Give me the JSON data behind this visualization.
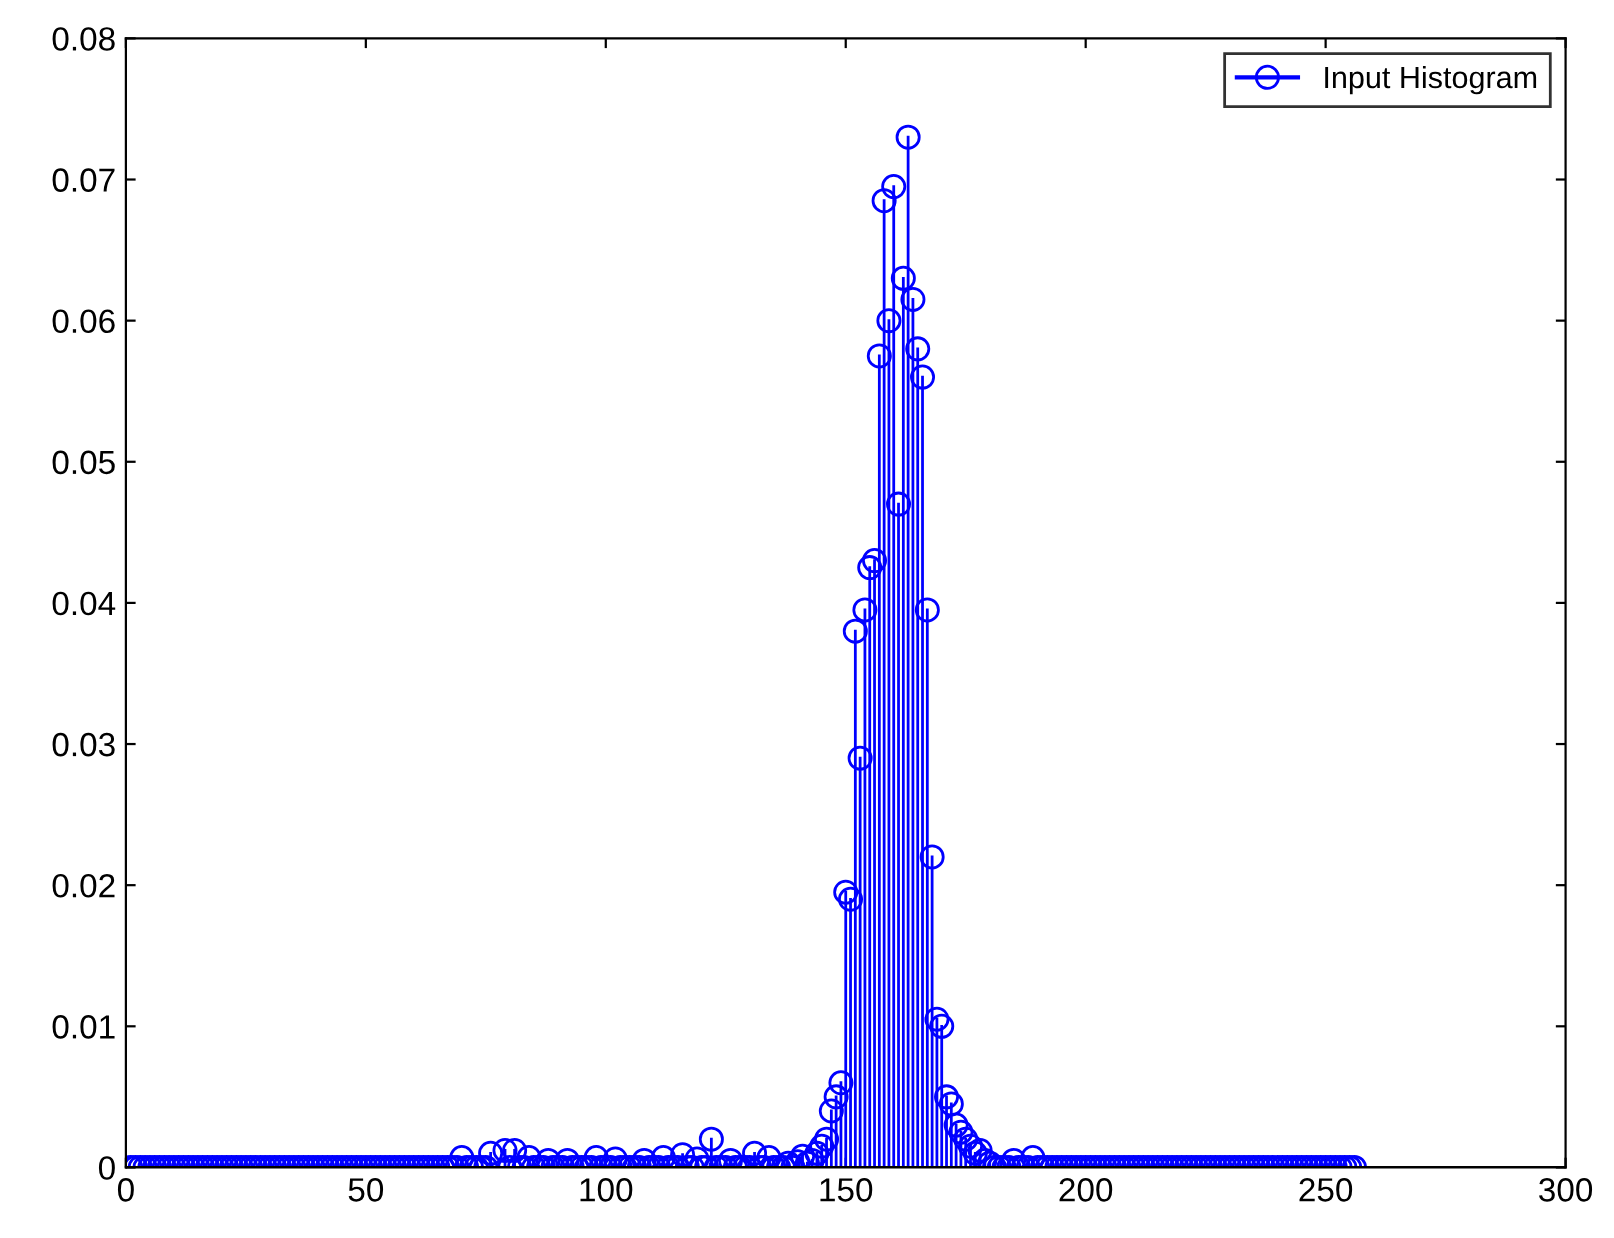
{
  "chart_data": {
    "type": "lollipop",
    "x": [
      1,
      2,
      3,
      4,
      5,
      6,
      7,
      8,
      9,
      10,
      11,
      12,
      13,
      14,
      15,
      16,
      17,
      18,
      19,
      20,
      21,
      22,
      23,
      24,
      25,
      26,
      27,
      28,
      29,
      30,
      31,
      32,
      33,
      34,
      35,
      36,
      37,
      38,
      39,
      40,
      41,
      42,
      43,
      44,
      45,
      46,
      47,
      48,
      49,
      50,
      51,
      52,
      53,
      54,
      55,
      56,
      57,
      58,
      59,
      60,
      61,
      62,
      63,
      64,
      65,
      66,
      67,
      68,
      69,
      70,
      71,
      72,
      73,
      74,
      75,
      76,
      77,
      78,
      79,
      80,
      81,
      82,
      83,
      84,
      85,
      86,
      87,
      88,
      89,
      90,
      91,
      92,
      93,
      94,
      95,
      96,
      97,
      98,
      99,
      100,
      101,
      102,
      103,
      104,
      105,
      106,
      107,
      108,
      109,
      110,
      111,
      112,
      113,
      114,
      115,
      116,
      117,
      118,
      119,
      120,
      121,
      122,
      123,
      124,
      125,
      126,
      127,
      128,
      129,
      130,
      131,
      132,
      133,
      134,
      135,
      136,
      137,
      138,
      139,
      140,
      141,
      142,
      143,
      144,
      145,
      146,
      147,
      148,
      149,
      150,
      151,
      152,
      153,
      154,
      155,
      156,
      157,
      158,
      159,
      160,
      161,
      162,
      163,
      164,
      165,
      166,
      167,
      168,
      169,
      170,
      171,
      172,
      173,
      174,
      175,
      176,
      177,
      178,
      179,
      180,
      181,
      182,
      183,
      184,
      185,
      186,
      187,
      188,
      189,
      190,
      191,
      192,
      193,
      194,
      195,
      196,
      197,
      198,
      199,
      200,
      201,
      202,
      203,
      204,
      205,
      206,
      207,
      208,
      209,
      210,
      211,
      212,
      213,
      214,
      215,
      216,
      217,
      218,
      219,
      220,
      221,
      222,
      223,
      224,
      225,
      226,
      227,
      228,
      229,
      230,
      231,
      232,
      233,
      234,
      235,
      236,
      237,
      238,
      239,
      240,
      241,
      242,
      243,
      244,
      245,
      246,
      247,
      248,
      249,
      250,
      251,
      252,
      253,
      254,
      255,
      256
    ],
    "series": [
      {
        "name": "Input Histogram",
        "color": "#0000ff",
        "values": [
          0,
          0,
          0,
          0,
          0,
          0,
          0,
          0,
          0,
          0,
          0,
          0,
          0,
          0,
          0,
          0,
          0,
          0,
          0,
          0,
          0,
          0,
          0,
          0,
          0,
          0,
          0,
          0,
          0,
          0,
          0,
          0,
          0,
          0,
          0,
          0,
          0,
          0,
          0,
          0,
          0,
          0,
          0,
          0,
          0,
          0,
          0,
          0,
          0,
          0,
          0,
          0,
          0,
          0,
          0,
          0,
          0,
          0,
          0,
          0,
          0,
          0,
          0,
          0,
          0,
          0,
          0,
          0,
          0,
          0.0007,
          0,
          0,
          0,
          0,
          0,
          0.001,
          null,
          null,
          0.0012,
          0,
          0.0012,
          0,
          0,
          0.0007,
          0,
          0,
          0,
          0.0005,
          0,
          0,
          0,
          0.0005,
          0,
          0,
          0,
          0,
          0,
          0.0007,
          0,
          0,
          0,
          0.0006,
          0,
          0,
          0,
          0,
          0,
          0.0005,
          0,
          0,
          0,
          0.0007,
          0,
          0,
          0,
          0.0009,
          0,
          0,
          0.0006,
          0,
          0,
          0.002,
          0,
          0,
          0,
          0.0005,
          0,
          0,
          0,
          0,
          0.001,
          0,
          0,
          0.0007,
          0,
          0,
          0,
          0.0003,
          0,
          0.0004,
          0.0008,
          0.0003,
          0.0005,
          0.001,
          0.0015,
          0.002,
          0.004,
          0.005,
          0.006,
          0.0195,
          0.019,
          0.038,
          0.029,
          0.0395,
          0.0425,
          0.043,
          0.0575,
          0.0685,
          0.06,
          0.0695,
          0.047,
          0.063,
          0.073,
          0.0615,
          0.058,
          0.056,
          0.0395,
          0.022,
          0.0105,
          0.01,
          0.005,
          0.0045,
          0.003,
          0.0025,
          0.002,
          0.0015,
          0.001,
          0.0012,
          0.0005,
          0.0003,
          0,
          0,
          0,
          0,
          0.0005,
          0,
          0,
          0,
          0.0007,
          0,
          0,
          0,
          0,
          0,
          0,
          0,
          0,
          0,
          0,
          0,
          0,
          0,
          0,
          0,
          0,
          0,
          0,
          0,
          0,
          0,
          0,
          0,
          0,
          0,
          0,
          0,
          0,
          0,
          0,
          0,
          0,
          0,
          0,
          0,
          0,
          0,
          0,
          0,
          0,
          0,
          0,
          0,
          0,
          0,
          0,
          0,
          0,
          0,
          0,
          0,
          0,
          0,
          0,
          0,
          0,
          0,
          0,
          0,
          0,
          0,
          0,
          0,
          0,
          0,
          0,
          0
        ]
      }
    ],
    "xlim": [
      0,
      300
    ],
    "xticks": [
      0,
      50,
      100,
      150,
      200,
      250,
      300
    ],
    "ylim": [
      0,
      0.08
    ],
    "yticks": [
      0,
      0.01,
      0.02,
      0.03,
      0.04,
      0.05,
      0.06,
      0.07,
      0.08
    ],
    "marker": "circle",
    "legend": "top right",
    "grid": false
  }
}
